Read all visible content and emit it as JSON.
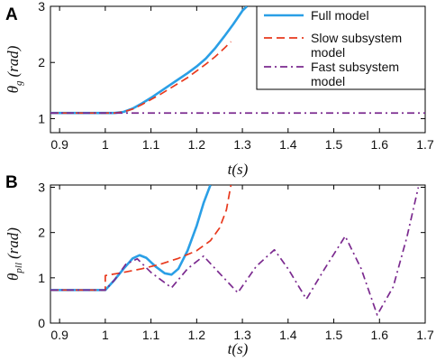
{
  "panels": [
    {
      "label": "A",
      "ylabel_main": "θ",
      "ylabel_sub": "g",
      "ylabel_unit": "(rad)",
      "xlabel": "t(s)",
      "chart_data": {
        "type": "line",
        "xlim": [
          0.88,
          1.7
        ],
        "ylim": [
          0.75,
          3.0
        ],
        "xticks": [
          "0.9",
          "1",
          "1.1",
          "1.2",
          "1.3",
          "1.4",
          "1.5",
          "1.6",
          "1.7"
        ],
        "yticks": [
          "1",
          "2",
          "3"
        ],
        "legend_position": "top-right",
        "series": [
          {
            "name": "Full model",
            "color": "#2a9fe6",
            "dash": "solid",
            "points": [
              [
                0.88,
                1.1
              ],
              [
                1.0,
                1.1
              ],
              [
                1.02,
                1.1
              ],
              [
                1.04,
                1.12
              ],
              [
                1.06,
                1.18
              ],
              [
                1.08,
                1.27
              ],
              [
                1.1,
                1.37
              ],
              [
                1.12,
                1.48
              ],
              [
                1.14,
                1.59
              ],
              [
                1.16,
                1.7
              ],
              [
                1.18,
                1.81
              ],
              [
                1.2,
                1.93
              ],
              [
                1.22,
                2.07
              ],
              [
                1.24,
                2.25
              ],
              [
                1.26,
                2.46
              ],
              [
                1.28,
                2.68
              ],
              [
                1.3,
                2.92
              ],
              [
                1.31,
                3.0
              ]
            ]
          },
          {
            "name": "Slow subsystem model",
            "color": "#e8391d",
            "dash": "dashed",
            "points": [
              [
                0.88,
                1.1
              ],
              [
                1.0,
                1.1
              ],
              [
                1.02,
                1.1
              ],
              [
                1.04,
                1.12
              ],
              [
                1.06,
                1.17
              ],
              [
                1.08,
                1.25
              ],
              [
                1.1,
                1.34
              ],
              [
                1.12,
                1.43
              ],
              [
                1.14,
                1.53
              ],
              [
                1.16,
                1.63
              ],
              [
                1.18,
                1.73
              ],
              [
                1.2,
                1.85
              ],
              [
                1.22,
                1.97
              ],
              [
                1.24,
                2.1
              ],
              [
                1.26,
                2.25
              ],
              [
                1.275,
                2.37
              ]
            ]
          },
          {
            "name": "Fast subsystem model",
            "color": "#7b2a8f",
            "dash": "dashdot",
            "points": [
              [
                0.88,
                1.1
              ],
              [
                1.7,
                1.1
              ]
            ]
          }
        ]
      }
    },
    {
      "label": "B",
      "ylabel_main": "θ",
      "ylabel_sub": "pll",
      "ylabel_unit": "(rad)",
      "xlabel": "t(s)",
      "chart_data": {
        "type": "line",
        "xlim": [
          0.88,
          1.7
        ],
        "ylim": [
          0.0,
          3.05
        ],
        "xticks": [
          "0.9",
          "1",
          "1.1",
          "1.2",
          "1.3",
          "1.4",
          "1.5",
          "1.6",
          "1.7"
        ],
        "yticks": [
          "0",
          "1",
          "2",
          "3"
        ],
        "series": [
          {
            "name": "Full model",
            "color": "#2a9fe6",
            "dash": "solid",
            "points": [
              [
                0.88,
                0.73
              ],
              [
                1.0,
                0.73
              ],
              [
                1.02,
                0.95
              ],
              [
                1.04,
                1.2
              ],
              [
                1.06,
                1.43
              ],
              [
                1.075,
                1.5
              ],
              [
                1.09,
                1.44
              ],
              [
                1.11,
                1.25
              ],
              [
                1.13,
                1.1
              ],
              [
                1.145,
                1.07
              ],
              [
                1.16,
                1.2
              ],
              [
                1.18,
                1.6
              ],
              [
                1.2,
                2.15
              ],
              [
                1.215,
                2.65
              ],
              [
                1.23,
                3.05
              ]
            ]
          },
          {
            "name": "Slow subsystem model",
            "color": "#e8391d",
            "dash": "dashed",
            "points": [
              [
                0.88,
                0.73
              ],
              [
                1.0,
                0.73
              ],
              [
                1.0,
                1.05
              ],
              [
                1.04,
                1.12
              ],
              [
                1.08,
                1.2
              ],
              [
                1.12,
                1.3
              ],
              [
                1.16,
                1.43
              ],
              [
                1.2,
                1.6
              ],
              [
                1.23,
                1.82
              ],
              [
                1.25,
                2.1
              ],
              [
                1.265,
                2.5
              ],
              [
                1.275,
                3.05
              ]
            ]
          },
          {
            "name": "Fast subsystem model",
            "color": "#7b2a8f",
            "dash": "dashdot",
            "points": [
              [
                0.88,
                0.73
              ],
              [
                1.0,
                0.73
              ],
              [
                1.02,
                0.95
              ],
              [
                1.045,
                1.3
              ],
              [
                1.07,
                1.42
              ],
              [
                1.1,
                1.12
              ],
              [
                1.145,
                0.78
              ],
              [
                1.18,
                1.2
              ],
              [
                1.215,
                1.48
              ],
              [
                1.25,
                1.1
              ],
              [
                1.29,
                0.67
              ],
              [
                1.33,
                1.25
              ],
              [
                1.37,
                1.62
              ],
              [
                1.4,
                1.2
              ],
              [
                1.44,
                0.53
              ],
              [
                1.48,
                1.2
              ],
              [
                1.525,
                1.92
              ],
              [
                1.56,
                1.2
              ],
              [
                1.595,
                0.18
              ],
              [
                1.63,
                0.8
              ],
              [
                1.66,
                1.9
              ],
              [
                1.685,
                3.0
              ]
            ]
          }
        ]
      }
    }
  ],
  "legend": {
    "items": [
      {
        "line1": "Full model",
        "line2": "",
        "color": "#2a9fe6",
        "dash": "solid"
      },
      {
        "line1": "Slow subsystem",
        "line2": "model",
        "color": "#e8391d",
        "dash": "dashed"
      },
      {
        "line1": "Fast subsystem",
        "line2": "model",
        "color": "#7b2a8f",
        "dash": "dashdot"
      }
    ]
  }
}
